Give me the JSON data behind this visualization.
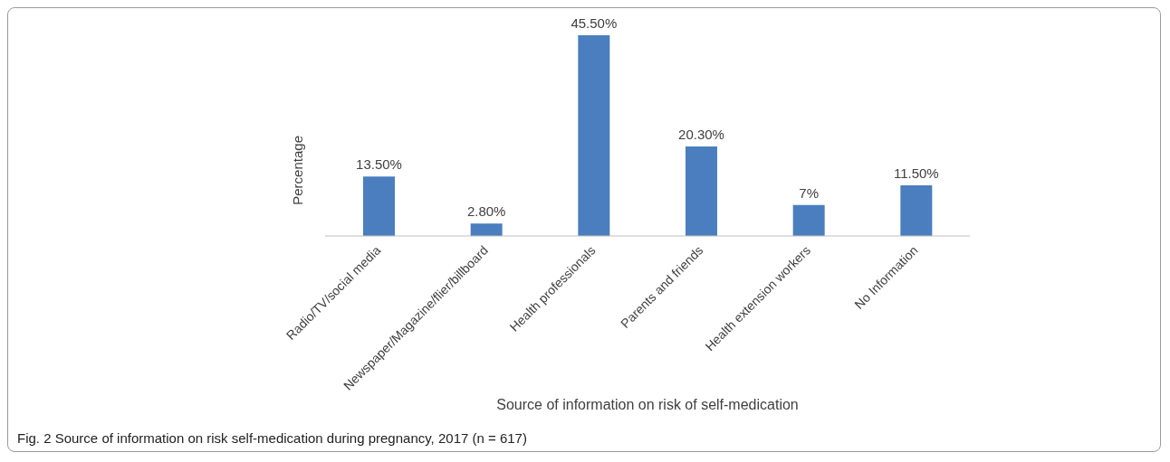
{
  "chart_data": {
    "type": "bar",
    "xlabel": "Source of information on risk of self-medication",
    "ylabel": "Percentage",
    "categories": [
      "Radio/TV/social media",
      "Newspaper/Magazine/flier/billboard",
      "Health professionals",
      "Parents and friends",
      "Health extension workers",
      "No Information"
    ],
    "values": [
      13.5,
      2.8,
      45.5,
      20.3,
      7,
      11.5
    ],
    "value_labels": [
      "13.50%",
      "2.80%",
      "45.50%",
      "20.30%",
      "7%",
      "11.50%"
    ],
    "color": "#4a7ebf",
    "annotations": [
      "Fig. 2 Source of information on risk self-medication during pregnancy, 2017 (n = 617)"
    ]
  }
}
